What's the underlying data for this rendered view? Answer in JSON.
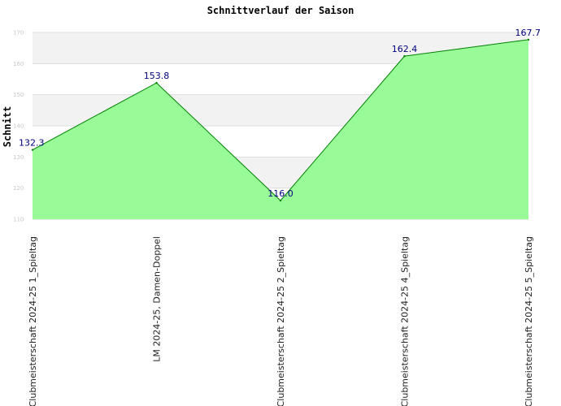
{
  "chart_data": {
    "type": "area",
    "title": "Schnittverlauf der Saison",
    "xlabel": "",
    "ylabel": "Schnitt",
    "categories": [
      "Clubmeisterschaft 2024-25   1_Spieltag",
      "LM 2024-25, Damen-Doppel",
      "Clubmeisterschaft 2024-25   2_Spieltag",
      "Clubmeisterschaft 2024-25   4_Spieltag",
      "Clubmeisterschaft 2024-25   5_Spieltag"
    ],
    "series": [
      {
        "values": [
          132.3,
          153.8,
          116.0,
          162.4,
          167.7
        ]
      }
    ],
    "data_labels": [
      "132.3",
      "153.8",
      "116.0",
      "162.4",
      "167.7"
    ],
    "yticks": [
      110,
      120,
      130,
      140,
      150,
      160,
      170
    ],
    "ylim": [
      110,
      170
    ],
    "grid": true,
    "legend": "none",
    "colors": {
      "fill": "#98fb98",
      "line": "#008000",
      "band": "#f2f2f2",
      "grid": "#dddddd",
      "label": "#000080",
      "tick": "#c8c8c8"
    }
  }
}
